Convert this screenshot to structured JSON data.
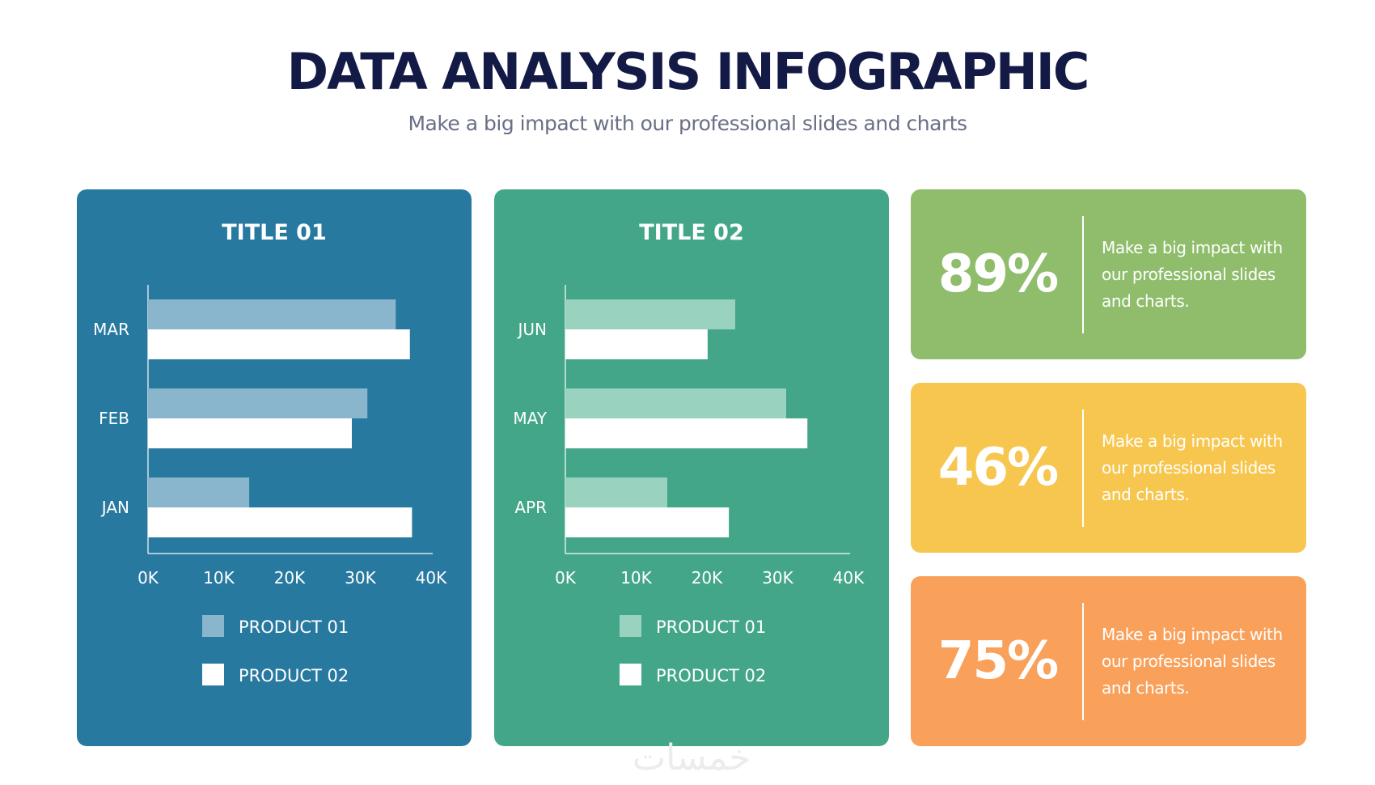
{
  "header": {
    "title": "DATA ANALYSIS INFOGRAPHIC",
    "subtitle": "Make a big impact with our professional slides and charts"
  },
  "colors": {
    "panel1_bg": "#28799f",
    "panel1_product01": "#89b6cd",
    "panel2_bg": "#44a688",
    "panel2_product01": "#99d2bf",
    "product02": "#ffffff",
    "stat1_bg": "#8fbd6c",
    "stat2_bg": "#f7c64f",
    "stat3_bg": "#f9a05a"
  },
  "chart_data": [
    {
      "type": "bar",
      "orientation": "horizontal",
      "title": "TITLE 01",
      "categories": [
        "MAR",
        "FEB",
        "JAN"
      ],
      "series": [
        {
          "name": "PRODUCT 01",
          "values": [
            35000,
            31000,
            14300
          ]
        },
        {
          "name": "PRODUCT 02",
          "values": [
            37000,
            28800,
            37300
          ]
        }
      ],
      "xlim": [
        0,
        40000
      ],
      "xticks": [
        "0K",
        "10K",
        "20K",
        "30K",
        "40K"
      ],
      "legend": "bottom"
    },
    {
      "type": "bar",
      "orientation": "horizontal",
      "title": "TITLE 02",
      "categories": [
        "JUN",
        "MAY",
        "APR"
      ],
      "series": [
        {
          "name": "PRODUCT 01",
          "values": [
            24000,
            31200,
            14400
          ]
        },
        {
          "name": "PRODUCT 02",
          "values": [
            20100,
            34200,
            23100
          ]
        }
      ],
      "xlim": [
        0,
        40000
      ],
      "xticks": [
        "0K",
        "10K",
        "20K",
        "30K",
        "40K"
      ],
      "legend": "bottom"
    }
  ],
  "stats": [
    {
      "value": "89%",
      "text": "Make a big impact with our professional slides and charts."
    },
    {
      "value": "46%",
      "text": "Make a big impact with our professional slides and charts."
    },
    {
      "value": "75%",
      "text": "Make a big impact with our professional slides and charts."
    }
  ],
  "watermark": "خمسات"
}
